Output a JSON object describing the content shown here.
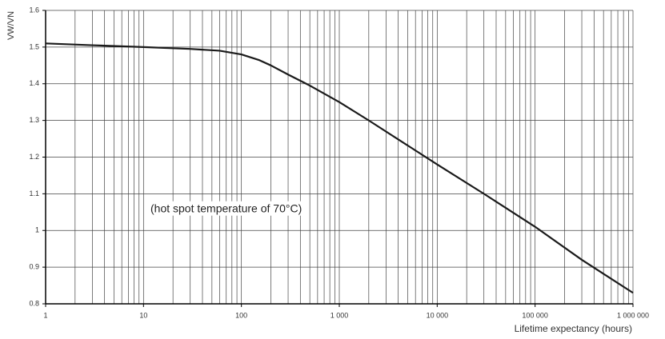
{
  "chart_data": {
    "type": "line",
    "ylabel": "VW/VN",
    "xlabel": "Lifetime expectancy (hours)",
    "annotation": "(hot spot temperature of 70°C)",
    "x": [
      1,
      3,
      10,
      30,
      60,
      100,
      150,
      200,
      300,
      500,
      1000,
      2000,
      10000,
      30000,
      100000,
      300000,
      1000000
    ],
    "values": [
      1.51,
      1.505,
      1.5,
      1.495,
      1.49,
      1.48,
      1.465,
      1.45,
      1.425,
      1.395,
      1.35,
      1.3,
      1.18,
      1.1,
      1.01,
      0.92,
      0.83
    ],
    "color": "#1a1a1a",
    "xscale": "log",
    "xlim": [
      1,
      1000000
    ],
    "ylim": [
      0.8,
      1.6
    ],
    "xticks": [
      1,
      10,
      100,
      {
        "value": 1000,
        "label": "1 000"
      },
      {
        "value": 10000,
        "label": "10 000"
      },
      {
        "value": 100000,
        "label": "100 000"
      },
      {
        "value": 1000000,
        "label": "1 000 000"
      }
    ],
    "xminor": [
      2,
      3,
      4,
      5,
      6,
      7,
      8,
      9,
      20,
      30,
      40,
      50,
      60,
      70,
      80,
      90,
      200,
      300,
      400,
      500,
      600,
      700,
      800,
      900,
      2000,
      3000,
      4000,
      5000,
      6000,
      7000,
      8000,
      9000,
      20000,
      30000,
      40000,
      50000,
      60000,
      70000,
      80000,
      90000,
      200000,
      300000,
      400000,
      500000,
      600000,
      700000,
      800000,
      900000
    ],
    "yticks": [
      0.8,
      0.9,
      1,
      1.1,
      1.2,
      1.3,
      1.4,
      1.5,
      1.6
    ],
    "grid": true
  }
}
